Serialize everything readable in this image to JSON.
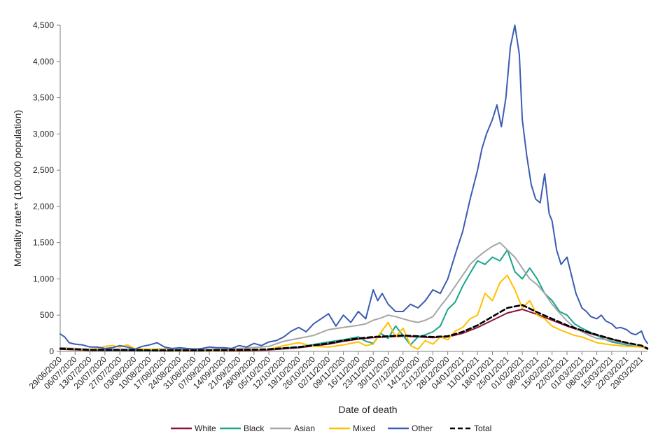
{
  "chart_data": {
    "type": "line",
    "title": "",
    "xlabel": "Date of death",
    "ylabel": "Mortality rate** (100,000 population)",
    "ylim": [
      0,
      4500
    ],
    "yticks": [
      0,
      500,
      1000,
      1500,
      2000,
      2500,
      3000,
      3500,
      4000,
      4500
    ],
    "ytick_labels": [
      "0",
      "500",
      "1,000",
      "1,500",
      "2,000",
      "2,500",
      "3,000",
      "3,500",
      "4,000",
      "4,500"
    ],
    "x_tick_labels": [
      "29/06/2020",
      "06/07/2020",
      "13/07/2020",
      "20/07/2020",
      "27/07/2020",
      "03/08/2020",
      "10/08/2020",
      "17/08/2020",
      "24/08/2020",
      "31/08/2020",
      "07/09/2020",
      "14/09/2020",
      "21/09/2020",
      "28/09/2020",
      "05/10/2020",
      "12/10/2020",
      "19/10/2020",
      "26/10/2020",
      "02/11/2020",
      "09/11/2020",
      "16/11/2020",
      "23/11/2020",
      "30/11/2020",
      "07/12/2020",
      "14/12/2020",
      "21/12/2020",
      "28/12/2020",
      "04/01/2021",
      "11/01/2021",
      "18/01/2021",
      "25/01/2021",
      "01/02/2021",
      "08/02/2021",
      "15/02/2021",
      "22/02/2021",
      "01/03/2021",
      "08/03/2021",
      "15/03/2021",
      "22/03/2021",
      "29/03/2021"
    ],
    "x_index_range": [
      0,
      39.4
    ],
    "grid": false,
    "legend_position": "bottom",
    "series": [
      {
        "name": "White",
        "color": "#8b1538",
        "x": [
          0,
          2,
          4,
          6,
          8,
          10,
          12,
          14,
          16,
          18,
          19,
          20,
          21,
          22,
          23,
          24,
          25,
          26,
          27,
          28,
          29,
          30,
          31,
          32,
          33,
          34,
          35,
          36,
          37,
          38,
          39,
          39.4
        ],
        "values": [
          30,
          15,
          15,
          10,
          10,
          10,
          10,
          20,
          50,
          100,
          140,
          170,
          190,
          200,
          210,
          200,
          190,
          200,
          250,
          330,
          430,
          530,
          580,
          510,
          430,
          350,
          280,
          220,
          170,
          110,
          70,
          30
        ]
      },
      {
        "name": "Black",
        "color": "#1aa58c",
        "x": [
          0,
          2,
          4,
          6,
          8,
          10,
          12,
          14,
          16,
          18,
          19,
          20,
          20.5,
          21,
          21.5,
          22,
          22.5,
          23,
          23.5,
          24,
          24.5,
          25,
          25.5,
          26,
          26.5,
          27,
          27.5,
          28,
          28.5,
          29,
          29.5,
          30,
          30.5,
          31,
          31.5,
          32,
          32.5,
          33,
          33.5,
          34,
          34.5,
          35,
          35.5,
          36,
          36.5,
          37,
          37.5,
          38,
          38.5,
          39,
          39.4
        ],
        "values": [
          40,
          20,
          20,
          10,
          20,
          10,
          20,
          30,
          60,
          130,
          160,
          200,
          140,
          110,
          250,
          180,
          350,
          220,
          90,
          200,
          230,
          270,
          350,
          580,
          680,
          900,
          1080,
          1250,
          1200,
          1300,
          1250,
          1400,
          1100,
          1000,
          1150,
          1000,
          800,
          700,
          550,
          500,
          380,
          320,
          270,
          220,
          170,
          130,
          110,
          90,
          80,
          70,
          50
        ]
      },
      {
        "name": "Asian",
        "color": "#a6a6a6",
        "x": [
          0,
          2,
          4,
          6,
          8,
          10,
          12,
          14,
          15,
          16,
          17,
          18,
          19,
          20,
          20.5,
          21,
          21.5,
          22,
          22.5,
          23,
          23.5,
          24,
          24.5,
          25,
          25.5,
          26,
          26.5,
          27,
          27.5,
          28,
          28.5,
          29,
          29.5,
          30,
          30.5,
          31,
          31.5,
          32,
          32.5,
          33,
          33.5,
          34,
          34.5,
          35,
          35.5,
          36,
          37,
          38,
          39,
          39.4
        ],
        "values": [
          50,
          30,
          30,
          30,
          40,
          30,
          40,
          70,
          140,
          180,
          220,
          300,
          330,
          360,
          380,
          430,
          460,
          500,
          480,
          450,
          420,
          400,
          430,
          480,
          620,
          750,
          900,
          1050,
          1200,
          1300,
          1380,
          1450,
          1500,
          1400,
          1300,
          1150,
          1000,
          920,
          800,
          650,
          530,
          420,
          330,
          270,
          220,
          180,
          150,
          100,
          70,
          50
        ]
      },
      {
        "name": "Mixed",
        "color": "#ffc000",
        "x": [
          0,
          1,
          2,
          3,
          3.5,
          4,
          4.5,
          5,
          6,
          7,
          8,
          9,
          10,
          12,
          14,
          15,
          16,
          17,
          18,
          19,
          20,
          20.5,
          21,
          21.5,
          22,
          22.5,
          23,
          23.5,
          24,
          24.5,
          25,
          25.5,
          26,
          26.5,
          27,
          27.5,
          28,
          28.5,
          29,
          29.5,
          30,
          30.5,
          31,
          31.5,
          32,
          32.5,
          33,
          33.5,
          34,
          34.5,
          35,
          35.5,
          36,
          37,
          38,
          39,
          39.4
        ],
        "values": [
          40,
          30,
          20,
          70,
          80,
          60,
          90,
          40,
          30,
          20,
          10,
          20,
          10,
          20,
          30,
          80,
          120,
          70,
          60,
          90,
          130,
          80,
          100,
          260,
          400,
          200,
          320,
          80,
          30,
          150,
          100,
          200,
          160,
          280,
          330,
          450,
          500,
          800,
          700,
          950,
          1050,
          850,
          600,
          700,
          500,
          450,
          350,
          300,
          260,
          220,
          200,
          160,
          120,
          90,
          70,
          60,
          40
        ]
      },
      {
        "name": "Other",
        "color": "#3b5cb3",
        "x": [
          0,
          0.3,
          0.6,
          1,
          1.5,
          2,
          2.5,
          3,
          3.5,
          4,
          4.5,
          5,
          5.5,
          6,
          6.5,
          7,
          7.5,
          8,
          8.5,
          9,
          9.5,
          10,
          10.5,
          11,
          11.5,
          12,
          12.5,
          13,
          13.5,
          14,
          14.5,
          15,
          15.5,
          16,
          16.5,
          17,
          17.5,
          18,
          18.5,
          19,
          19.5,
          20,
          20.5,
          21,
          21.3,
          21.6,
          22,
          22.5,
          23,
          23.5,
          24,
          24.5,
          25,
          25.5,
          26,
          26.3,
          26.6,
          27,
          27.5,
          28,
          28.3,
          28.6,
          29,
          29.3,
          29.6,
          29.9,
          30.2,
          30.5,
          30.8,
          31,
          31.3,
          31.6,
          31.9,
          32.2,
          32.5,
          32.8,
          33,
          33.3,
          33.6,
          34,
          34.3,
          34.6,
          35,
          35.3,
          35.6,
          36,
          36.3,
          36.6,
          37,
          37.3,
          37.6,
          38,
          38.3,
          38.6,
          39,
          39.2,
          39.4
        ],
        "values": [
          240,
          200,
          120,
          100,
          90,
          60,
          60,
          40,
          50,
          80,
          60,
          30,
          70,
          90,
          120,
          60,
          40,
          50,
          40,
          30,
          40,
          60,
          50,
          50,
          40,
          80,
          60,
          110,
          80,
          130,
          150,
          200,
          280,
          330,
          270,
          380,
          450,
          520,
          350,
          500,
          400,
          550,
          450,
          850,
          700,
          800,
          650,
          550,
          550,
          650,
          600,
          700,
          850,
          800,
          1000,
          1200,
          1400,
          1650,
          2100,
          2500,
          2800,
          3000,
          3200,
          3400,
          3100,
          3500,
          4200,
          4500,
          4100,
          3200,
          2700,
          2300,
          2100,
          2050,
          2450,
          1900,
          1800,
          1400,
          1200,
          1300,
          1050,
          800,
          600,
          550,
          480,
          450,
          500,
          420,
          380,
          320,
          330,
          300,
          250,
          230,
          280,
          170,
          110
        ]
      },
      {
        "name": "Total",
        "color": "#000000",
        "dashed": true,
        "x": [
          0,
          2,
          4,
          6,
          8,
          10,
          12,
          14,
          16,
          18,
          19,
          20,
          21,
          22,
          23,
          24,
          25,
          26,
          27,
          28,
          29,
          30,
          31,
          32,
          33,
          34,
          35,
          36,
          37,
          38,
          39,
          39.4
        ],
        "values": [
          40,
          20,
          20,
          15,
          15,
          15,
          20,
          30,
          60,
          110,
          150,
          180,
          200,
          210,
          220,
          210,
          200,
          210,
          270,
          360,
          480,
          600,
          640,
          540,
          450,
          360,
          290,
          230,
          170,
          120,
          80,
          40
        ]
      }
    ]
  }
}
